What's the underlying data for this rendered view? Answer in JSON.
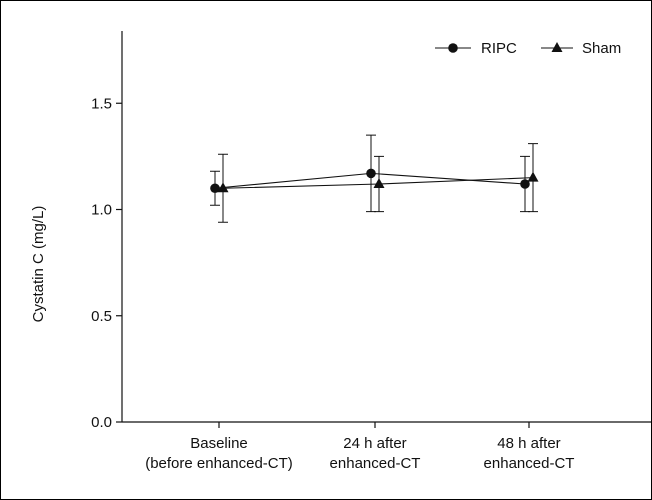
{
  "chart_data": {
    "type": "line",
    "ylabel": "Cystatin C (mg/L)",
    "xlabel": "",
    "ylim": [
      0,
      1.85
    ],
    "yticks": [
      "0.0",
      "0.5",
      "1.0",
      "1.5"
    ],
    "categories": [
      [
        "Baseline",
        "(before enhanced-CT)"
      ],
      [
        "24 h after",
        "enhanced-CT"
      ],
      [
        "48 h after",
        "enhanced-CT"
      ]
    ],
    "legend_position": "top-right",
    "series": [
      {
        "name": "RIPC",
        "marker": "circle",
        "values": [
          1.1,
          1.17,
          1.12
        ],
        "error": [
          0.08,
          0.18,
          0.13
        ]
      },
      {
        "name": "Sham",
        "marker": "triangle",
        "values": [
          1.1,
          1.12,
          1.15
        ],
        "error": [
          0.16,
          0.13,
          0.16
        ]
      }
    ],
    "color": "#111111"
  }
}
